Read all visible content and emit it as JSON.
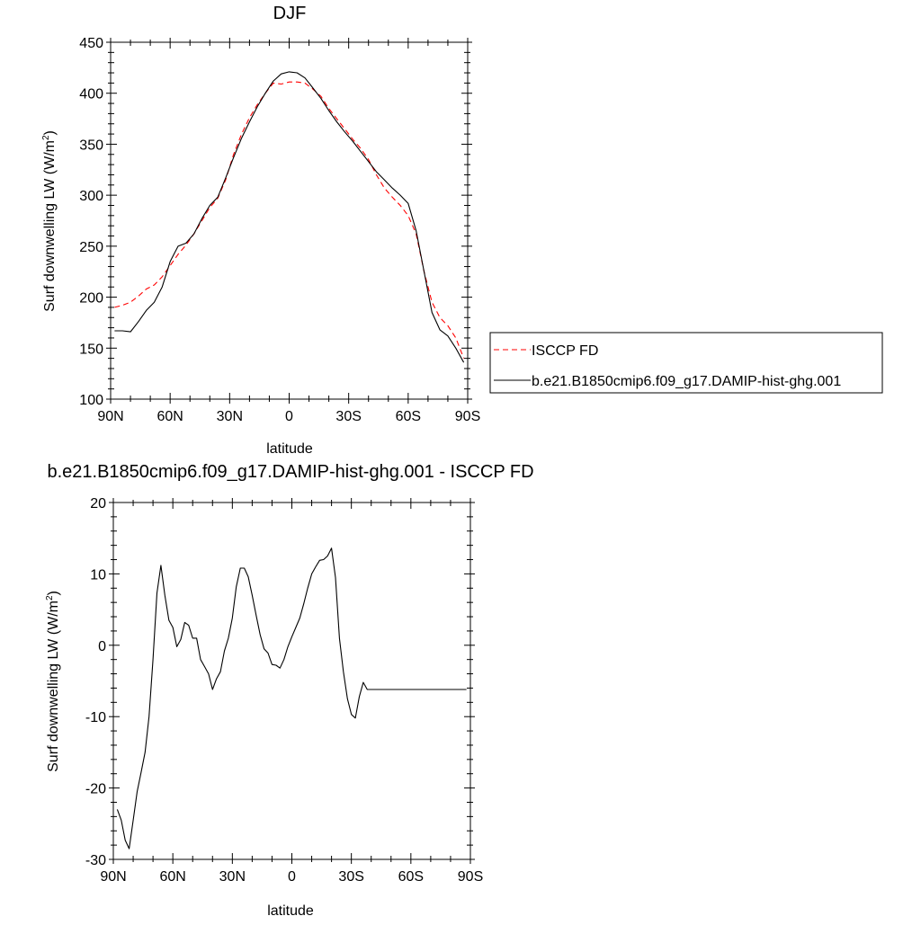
{
  "chart_data": [
    {
      "type": "line",
      "title": "DJF",
      "xlabel": "latitude",
      "ylabel": "Surf downwelling LW (W/m",
      "ylabel_sup": "2",
      "ylabel_close": ")",
      "xlim": [
        90,
        -90
      ],
      "ylim": [
        100,
        450
      ],
      "yticks": [
        100,
        150,
        200,
        250,
        300,
        350,
        400,
        450
      ],
      "xticks": [
        90,
        60,
        30,
        0,
        -30,
        -60,
        -90
      ],
      "xticklabels": [
        "90N",
        "60N",
        "30N",
        "0",
        "30S",
        "60S",
        "90S"
      ],
      "legend": "right",
      "series": [
        {
          "name": "ISCCP FD",
          "color": "#ff0000",
          "dash": "dashed",
          "x": [
            88,
            84,
            80,
            76,
            72,
            68,
            64,
            60,
            56,
            52,
            48,
            44,
            40,
            36,
            32,
            28,
            24,
            20,
            16,
            12,
            8,
            4,
            0,
            -4,
            -8,
            -12,
            -16,
            -20,
            -24,
            -28,
            -32,
            -36,
            -40,
            -44,
            -48,
            -52,
            -56,
            -60,
            -64,
            -68,
            -72,
            -76,
            -80,
            -84,
            -88
          ],
          "y": [
            190,
            192,
            195,
            201,
            208,
            212,
            220,
            231,
            242,
            251,
            262,
            275,
            288,
            297,
            315,
            340,
            360,
            376,
            389,
            400,
            410,
            409,
            411,
            411,
            410,
            404,
            397,
            385,
            375,
            365,
            355,
            346,
            335,
            320,
            307,
            298,
            290,
            280,
            262,
            225,
            195,
            180,
            172,
            160,
            140
          ]
        },
        {
          "name": "b.e21.B1850cmip6.f09_g17.DAMIP-hist-ghg.001",
          "color": "#000000",
          "dash": "solid",
          "x": [
            88,
            84,
            80,
            76,
            72,
            68,
            64,
            60,
            56,
            52,
            48,
            44,
            40,
            36,
            32,
            28,
            24,
            20,
            16,
            12,
            8,
            4,
            0,
            -4,
            -8,
            -12,
            -16,
            -20,
            -24,
            -28,
            -32,
            -36,
            -40,
            -44,
            -48,
            -52,
            -56,
            -60,
            -64,
            -68,
            -72,
            -76,
            -80,
            -84,
            -88
          ],
          "y": [
            167,
            167,
            166,
            176,
            187,
            195,
            210,
            235,
            250,
            253,
            262,
            277,
            290,
            298,
            317,
            337,
            356,
            372,
            387,
            400,
            412,
            419,
            421,
            420,
            415,
            405,
            395,
            383,
            372,
            362,
            353,
            343,
            333,
            323,
            315,
            307,
            300,
            292,
            265,
            225,
            185,
            168,
            162,
            150,
            136
          ]
        }
      ]
    },
    {
      "type": "line",
      "title": "b.e21.B1850cmip6.f09_g17.DAMIP-hist-ghg.001 - ISCCP FD",
      "xlabel": "latitude",
      "ylabel": "Surf downwelling LW (W/m",
      "ylabel_sup": "2",
      "ylabel_close": ")",
      "xlim": [
        90,
        -90
      ],
      "ylim": [
        -30,
        20
      ],
      "yticks": [
        -30,
        -20,
        -10,
        0,
        10,
        20
      ],
      "xticks": [
        90,
        60,
        30,
        0,
        -30,
        -60,
        -90
      ],
      "xticklabels": [
        "90N",
        "60N",
        "30N",
        "0",
        "30S",
        "60S",
        "90S"
      ],
      "series": [
        {
          "color": "#000000",
          "dash": "solid",
          "x": [
            88,
            86,
            84,
            82,
            80,
            78,
            76,
            74,
            72,
            70,
            68,
            66,
            64,
            62,
            60,
            58,
            56,
            54,
            52,
            50,
            48,
            46,
            44,
            42,
            40,
            38,
            36,
            34,
            32,
            30,
            28,
            26,
            24,
            22,
            20,
            18,
            16,
            14,
            12,
            10,
            8,
            6,
            4,
            2,
            0,
            -2,
            -4,
            -6,
            -8,
            -10,
            -12,
            -14,
            -16,
            -18,
            -20,
            -22,
            -24,
            -26,
            -28,
            -30,
            -32,
            -34,
            -36,
            -38,
            -40,
            -42,
            -44,
            -46,
            -48,
            -50,
            -52,
            -54,
            -56,
            -58,
            -60,
            -62,
            -64,
            -66,
            -68,
            -70,
            -72,
            -74,
            -76,
            -78,
            -80,
            -82,
            -84,
            -86,
            -88
          ],
          "y": [
            -23,
            -24.5,
            -27.3,
            -28.5,
            -24.5,
            -20.5,
            -17.8,
            -15,
            -10,
            -2,
            7.3,
            11.2,
            7,
            3.5,
            2.5,
            -0.2,
            0.8,
            3.2,
            2.8,
            1,
            1,
            -2,
            -3,
            -4,
            -6.2,
            -4.7,
            -3.7,
            -0.8,
            1,
            3.8,
            8.2,
            10.8,
            10.8,
            9.6,
            7,
            4.2,
            1.5,
            -0.5,
            -1.1,
            -2.7,
            -2.8,
            -3.2,
            -2,
            -0.2,
            1.2,
            2.5,
            3.8,
            5.8,
            8,
            10,
            11,
            11.9,
            12,
            12.5,
            13.6,
            9.5,
            1,
            -3.7,
            -7.5,
            -9.7,
            -10.2,
            -7.2,
            -5.2,
            -6.2,
            -6.2,
            -6.2,
            -6.2,
            -6.2,
            -6.2,
            -6.2,
            -6.2,
            -6.2,
            -6.2,
            -6.2,
            -6.2,
            -6.2,
            -6.2,
            -6.2,
            -6.2,
            -6.2,
            -6.2,
            -6.2,
            -6.2,
            -6.2,
            -6.2,
            -6.2,
            -6.2,
            -6.2,
            -6.2
          ]
        }
      ]
    }
  ]
}
